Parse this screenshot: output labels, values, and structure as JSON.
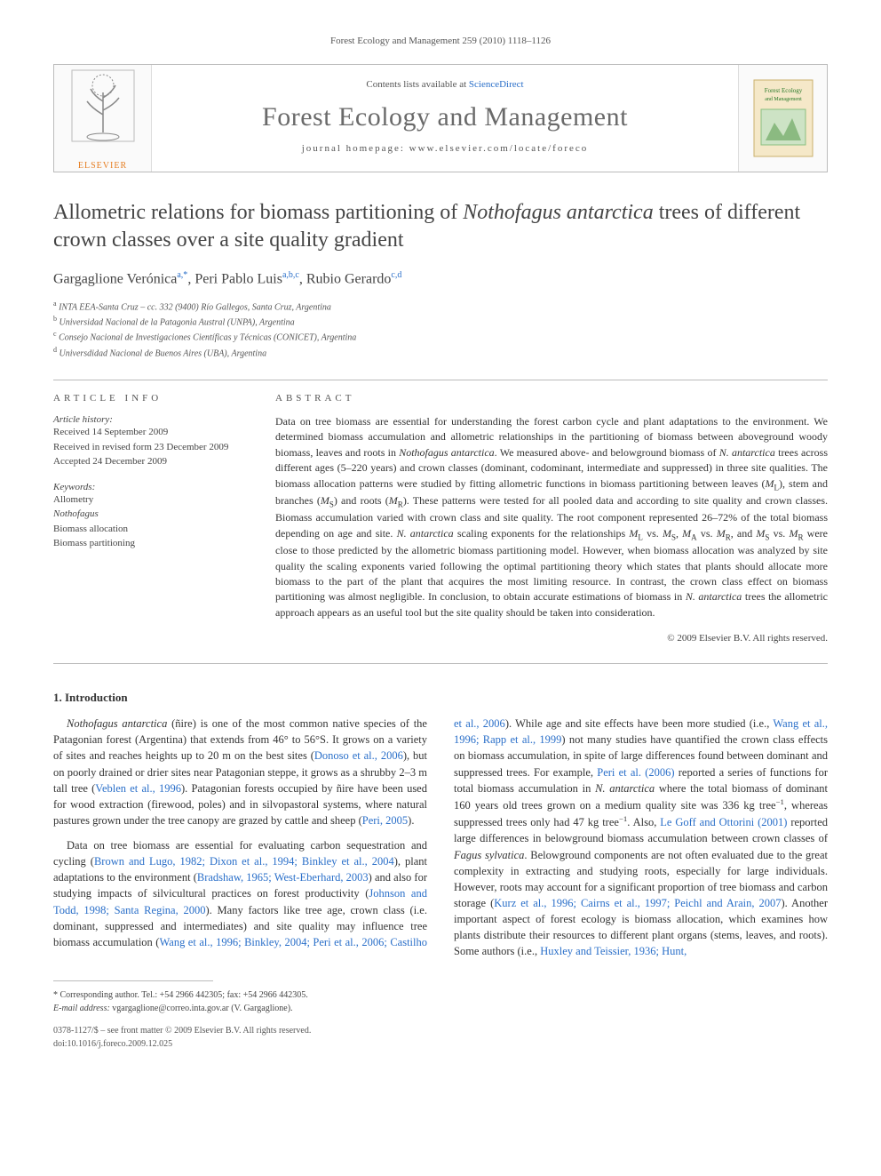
{
  "running_head": "Forest Ecology and Management 259 (2010) 1118–1126",
  "header": {
    "contents_prefix": "Contents lists available at ",
    "contents_link": "ScienceDirect",
    "journal": "Forest Ecology and Management",
    "homepage_prefix": "journal homepage: ",
    "homepage_url": "www.elsevier.com/locate/foreco",
    "publisher": "ELSEVIER",
    "cover_label_1": "Forest Ecology",
    "cover_label_2": "and Management"
  },
  "title_pre": "Allometric relations for biomass partitioning of ",
  "title_ital": "Nothofagus antarctica",
  "title_post": " trees of different crown classes over a site quality gradient",
  "authors": {
    "a1_name": "Gargaglione Verónica",
    "a1_sup": "a,*",
    "a2_name": "Peri Pablo Luis",
    "a2_sup": "a,b,c",
    "a3_name": "Rubio Gerardo",
    "a3_sup": "c,d"
  },
  "affiliations": [
    {
      "sup": "a",
      "text": "INTA EEA-Santa Cruz – cc. 332 (9400) Río Gallegos, Santa Cruz, Argentina"
    },
    {
      "sup": "b",
      "text": "Universidad Nacional de la Patagonia Austral (UNPA), Argentina"
    },
    {
      "sup": "c",
      "text": "Consejo Nacional de Investigaciones Científicas y Técnicas (CONICET), Argentina"
    },
    {
      "sup": "d",
      "text": "Universdidad Nacional de Buenos Aires (UBA), Argentina"
    }
  ],
  "info_head": "ARTICLE INFO",
  "abstract_head": "ABSTRACT",
  "history_label": "Article history:",
  "history": [
    "Received 14 September 2009",
    "Received in revised form 23 December 2009",
    "Accepted 24 December 2009"
  ],
  "keywords_label": "Keywords:",
  "keywords": [
    {
      "text": "Allometry",
      "ital": false
    },
    {
      "text": "Nothofagus",
      "ital": true
    },
    {
      "text": "Biomass allocation",
      "ital": false
    },
    {
      "text": "Biomass partitioning",
      "ital": false
    }
  ],
  "abstract_html": "Data on tree biomass are essential for understanding the forest carbon cycle and plant adaptations to the environment. We determined biomass accumulation and allometric relationships in the partitioning of biomass between aboveground woody biomass, leaves and roots in <span class='ital'>Nothofagus antarctica</span>. We measured above- and belowground biomass of <span class='ital'>N. antarctica</span> trees across different ages (5–220 years) and crown classes (dominant, codominant, intermediate and suppressed) in three site qualities. The biomass allocation patterns were studied by fitting allometric functions in biomass partitioning between leaves (<span class='ital'>M</span><sub>L</sub>), stem and branches (<span class='ital'>M</span><sub>S</sub>) and roots (<span class='ital'>M</span><sub>R</sub>). These patterns were tested for all pooled data and according to site quality and crown classes. Biomass accumulation varied with crown class and site quality. The root component represented 26–72% of the total biomass depending on age and site. <span class='ital'>N. antarctica</span> scaling exponents for the relationships <span class='ital'>M</span><sub>L</sub> vs. <span class='ital'>M</span><sub>S</sub>, <span class='ital'>M</span><sub>A</sub> vs. <span class='ital'>M</span><sub>R</sub>, and <span class='ital'>M</span><sub>S</sub> vs. <span class='ital'>M</span><sub>R</sub> were close to those predicted by the allometric biomass partitioning model. However, when biomass allocation was analyzed by site quality the scaling exponents varied following the optimal partitioning theory which states that plants should allocate more biomass to the part of the plant that acquires the most limiting resource. In contrast, the crown class effect on biomass partitioning was almost negligible. In conclusion, to obtain accurate estimations of biomass in <span class='ital'>N. antarctica</span> trees the allometric approach appears as an useful tool but the site quality should be taken into consideration.",
  "abstract_copyright": "© 2009 Elsevier B.V. All rights reserved.",
  "section_1": "1. Introduction",
  "body_html": "<p><span class='ital'>Nothofagus antarctica</span> (ñire) is one of the most common native species of the Patagonian forest (Argentina) that extends from 46° to 56°S. It grows on a variety of sites and reaches heights up to 20 m on the best sites (<span class='ref'>Donoso et al., 2006</span>), but on poorly drained or drier sites near Patagonian steppe, it grows as a shrubby 2–3 m tall tree (<span class='ref'>Veblen et al., 1996</span>). Patagonian forests occupied by ñire have been used for wood extraction (firewood, poles) and in silvopastoral systems, where natural pastures grown under the tree canopy are grazed by cattle and sheep (<span class='ref'>Peri, 2005</span>).</p><p>Data on tree biomass are essential for evaluating carbon sequestration and cycling (<span class='ref'>Brown and Lugo, 1982; Dixon et al., 1994; Binkley et al., 2004</span>), plant adaptations to the environment (<span class='ref'>Bradshaw, 1965; West-Eberhard, 2003</span>) and also for studying impacts of silvicultural practices on forest productivity (<span class='ref'>Johnson and Todd, 1998; Santa Regina, 2000</span>). Many factors like tree age, crown class (i.e. dominant, suppressed and intermediates) and site quality may influence tree biomass accumulation (<span class='ref'>Wang et al., 1996; Binkley, 2004; Peri et al., 2006; Castilho et al., 2006</span>). While age and site effects have been more studied (i.e., <span class='ref'>Wang et al., 1996; Rapp et al., 1999</span>) not many studies have quantified the crown class effects on biomass accumulation, in spite of large differences found between dominant and suppressed trees. For example, <span class='ref'>Peri et al. (2006)</span> reported a series of functions for total biomass accumulation in <span class='ital'>N. antarctica</span> where the total biomass of dominant 160 years old trees grown on a medium quality site was 336 kg tree<sup>−1</sup>, whereas suppressed trees only had 47 kg tree<sup>−1</sup>. Also, <span class='ref'>Le Goff and Ottorini (2001)</span> reported large differences in belowground biomass accumulation between crown classes of <span class='ital'>Fagus sylvatica</span>. Belowground components are not often evaluated due to the great complexity in extracting and studying roots, especially for large individuals. However, roots may account for a significant proportion of tree biomass and carbon storage (<span class='ref'>Kurz et al., 1996; Cairns et al., 1997; Peichl and Arain, 2007</span>). Another important aspect of forest ecology is biomass allocation, which examines how plants distribute their resources to different plant organs (stems, leaves, and roots). Some authors (i.e., <span class='ref'>Huxley and Teissier, 1936; Hunt,</span></p>",
  "footnote_star": "* Corresponding author. Tel.: +54 2966 442305; fax: +54 2966 442305.",
  "footnote_email_label": "E-mail address:",
  "footnote_email": "vgargaglione@correo.inta.gov.ar",
  "footnote_email_who": "(V. Gargaglione).",
  "footer_issn": "0378-1127/$ – see front matter © 2009 Elsevier B.V. All rights reserved.",
  "footer_doi": "doi:10.1016/j.foreco.2009.12.025",
  "colors": {
    "link": "#2a6fc9",
    "publisher_orange": "#e67e22",
    "rule": "#bbbbbb",
    "text": "#333333"
  }
}
